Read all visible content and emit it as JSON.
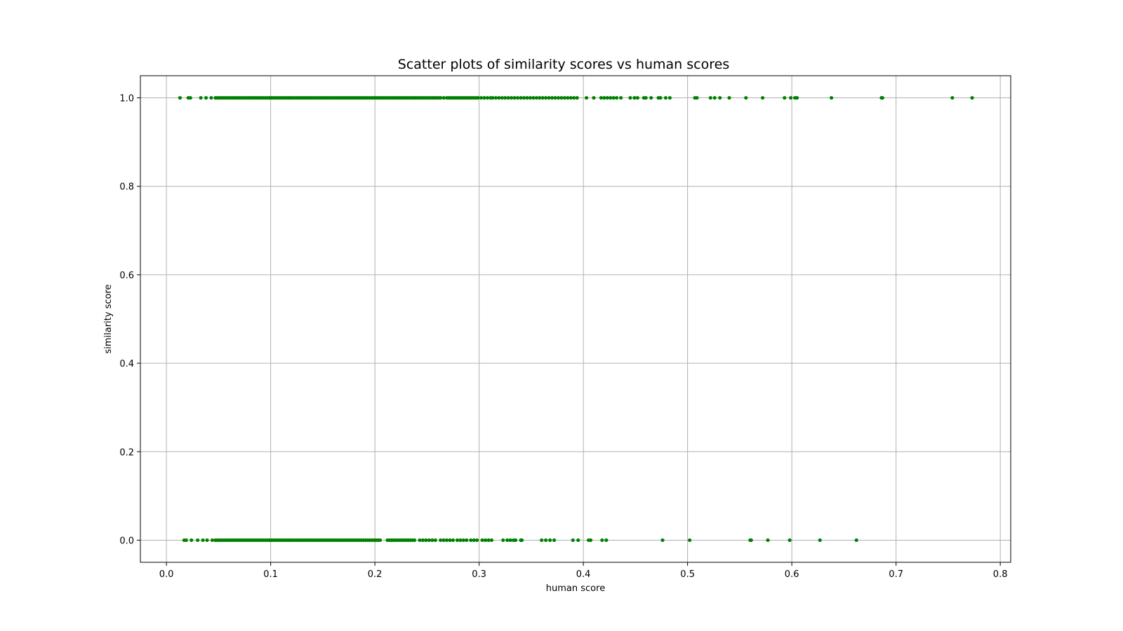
{
  "chart_data": {
    "type": "scatter",
    "title": "Scatter plots of similarity scores vs human scores",
    "xlabel": "human score",
    "ylabel": "similarity score",
    "xlim": [
      -0.025,
      0.81
    ],
    "ylim": [
      -0.05,
      1.05
    ],
    "xticks": [
      0.0,
      0.1,
      0.2,
      0.3,
      0.4,
      0.5,
      0.6,
      0.7,
      0.8
    ],
    "xtick_labels": [
      "0.0",
      "0.1",
      "0.2",
      "0.3",
      "0.4",
      "0.5",
      "0.6",
      "0.7",
      "0.8"
    ],
    "yticks": [
      0.0,
      0.2,
      0.4,
      0.6,
      0.8,
      1.0
    ],
    "ytick_labels": [
      "0.0",
      "0.2",
      "0.4",
      "0.6",
      "0.8",
      "1.0"
    ],
    "grid": true,
    "marker_color": "#008000",
    "series": [
      {
        "y_value": 1.0,
        "x": [
          0.013,
          0.021,
          0.023,
          0.033,
          0.038,
          0.043,
          0.047,
          0.049,
          0.051,
          0.053,
          0.055,
          0.057,
          0.059,
          0.061,
          0.063,
          0.065,
          0.067,
          0.069,
          0.071,
          0.073,
          0.075,
          0.077,
          0.079,
          0.081,
          0.083,
          0.085,
          0.087,
          0.089,
          0.091,
          0.093,
          0.095,
          0.097,
          0.099,
          0.101,
          0.103,
          0.105,
          0.107,
          0.109,
          0.111,
          0.113,
          0.115,
          0.117,
          0.119,
          0.121,
          0.123,
          0.125,
          0.127,
          0.129,
          0.131,
          0.133,
          0.135,
          0.137,
          0.139,
          0.141,
          0.143,
          0.145,
          0.147,
          0.149,
          0.151,
          0.153,
          0.155,
          0.157,
          0.159,
          0.161,
          0.163,
          0.165,
          0.167,
          0.169,
          0.171,
          0.173,
          0.175,
          0.177,
          0.179,
          0.181,
          0.183,
          0.185,
          0.187,
          0.189,
          0.191,
          0.193,
          0.195,
          0.197,
          0.199,
          0.201,
          0.203,
          0.205,
          0.207,
          0.209,
          0.211,
          0.213,
          0.215,
          0.217,
          0.219,
          0.221,
          0.223,
          0.225,
          0.227,
          0.229,
          0.231,
          0.233,
          0.235,
          0.237,
          0.239,
          0.241,
          0.243,
          0.245,
          0.247,
          0.249,
          0.251,
          0.253,
          0.255,
          0.257,
          0.259,
          0.261,
          0.263,
          0.266,
          0.269,
          0.271,
          0.273,
          0.275,
          0.277,
          0.279,
          0.281,
          0.283,
          0.285,
          0.287,
          0.289,
          0.291,
          0.293,
          0.295,
          0.297,
          0.299,
          0.302,
          0.305,
          0.308,
          0.311,
          0.313,
          0.316,
          0.319,
          0.322,
          0.325,
          0.328,
          0.331,
          0.334,
          0.337,
          0.34,
          0.343,
          0.346,
          0.349,
          0.352,
          0.355,
          0.358,
          0.361,
          0.364,
          0.367,
          0.37,
          0.373,
          0.376,
          0.379,
          0.382,
          0.385,
          0.388,
          0.391,
          0.394,
          0.403,
          0.41,
          0.417,
          0.42,
          0.423,
          0.426,
          0.429,
          0.432,
          0.436,
          0.445,
          0.449,
          0.452,
          0.458,
          0.46,
          0.465,
          0.472,
          0.474,
          0.479,
          0.483,
          0.507,
          0.509,
          0.522,
          0.526,
          0.531,
          0.54,
          0.556,
          0.572,
          0.593,
          0.599,
          0.603,
          0.605,
          0.638,
          0.686,
          0.687,
          0.754,
          0.773
        ]
      },
      {
        "y_value": 0.0,
        "x": [
          0.017,
          0.019,
          0.024,
          0.03,
          0.035,
          0.039,
          0.044,
          0.047,
          0.049,
          0.051,
          0.053,
          0.055,
          0.057,
          0.059,
          0.061,
          0.063,
          0.065,
          0.067,
          0.069,
          0.071,
          0.073,
          0.075,
          0.077,
          0.079,
          0.081,
          0.083,
          0.085,
          0.087,
          0.089,
          0.091,
          0.093,
          0.095,
          0.097,
          0.099,
          0.101,
          0.103,
          0.105,
          0.107,
          0.109,
          0.111,
          0.113,
          0.115,
          0.117,
          0.119,
          0.121,
          0.123,
          0.125,
          0.127,
          0.129,
          0.131,
          0.133,
          0.135,
          0.137,
          0.139,
          0.141,
          0.143,
          0.145,
          0.147,
          0.149,
          0.151,
          0.153,
          0.155,
          0.157,
          0.159,
          0.161,
          0.163,
          0.165,
          0.167,
          0.169,
          0.171,
          0.173,
          0.175,
          0.177,
          0.179,
          0.181,
          0.183,
          0.185,
          0.187,
          0.189,
          0.191,
          0.193,
          0.195,
          0.197,
          0.199,
          0.201,
          0.203,
          0.205,
          0.212,
          0.214,
          0.216,
          0.218,
          0.22,
          0.222,
          0.224,
          0.226,
          0.228,
          0.23,
          0.232,
          0.234,
          0.236,
          0.238,
          0.243,
          0.246,
          0.249,
          0.252,
          0.255,
          0.258,
          0.263,
          0.266,
          0.269,
          0.272,
          0.275,
          0.279,
          0.282,
          0.285,
          0.288,
          0.292,
          0.295,
          0.298,
          0.303,
          0.306,
          0.309,
          0.312,
          0.323,
          0.327,
          0.33,
          0.333,
          0.335,
          0.34,
          0.341,
          0.36,
          0.364,
          0.368,
          0.372,
          0.39,
          0.395,
          0.405,
          0.407,
          0.418,
          0.422,
          0.476,
          0.502,
          0.56,
          0.561,
          0.577,
          0.598,
          0.627,
          0.662
        ]
      }
    ]
  }
}
